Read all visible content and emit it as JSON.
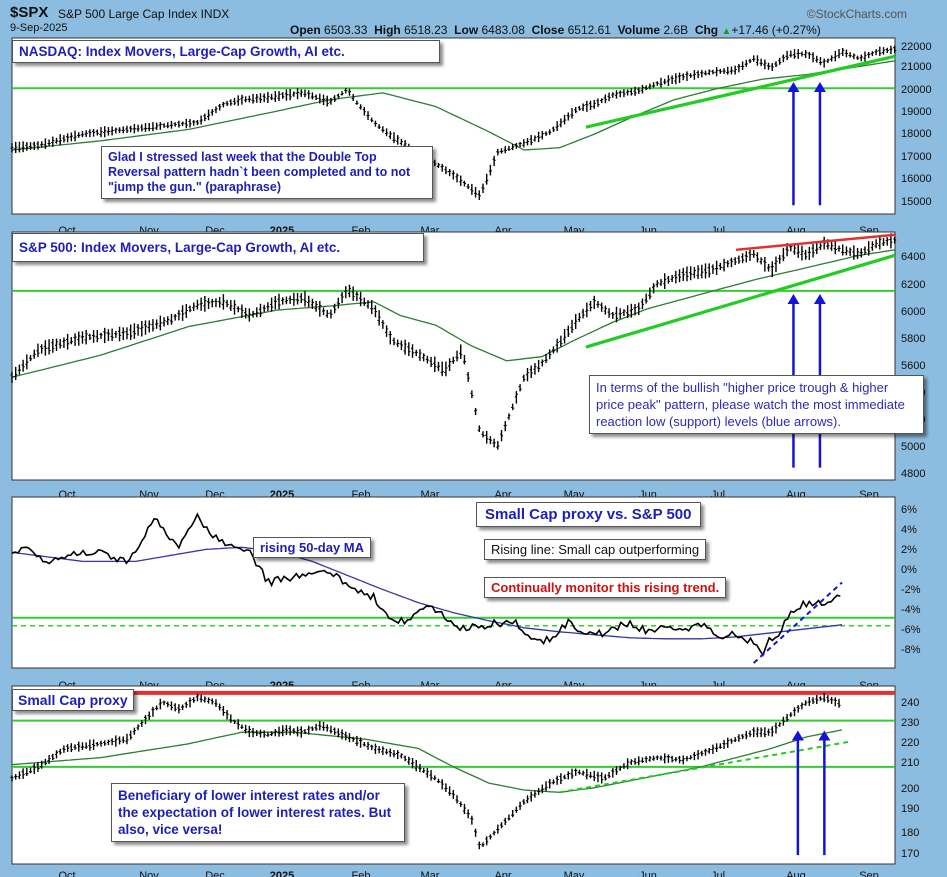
{
  "header": {
    "symbol": "$SPX",
    "index_name": "S&P 500 Large Cap Index",
    "exchange": "INDX",
    "date": "9-Sep-2025",
    "open_label": "Open",
    "open": "6503.33",
    "high_label": "High",
    "high": "6518.23",
    "low_label": "Low",
    "low": "6483.08",
    "close_label": "Close",
    "close": "6512.61",
    "volume_label": "Volume",
    "volume": "2.6B",
    "chg_label": "Chg",
    "chg": "+17.46 (+0.27%)",
    "chg_icon": "up-triangle-icon",
    "brand": "©StockCharts.com"
  },
  "colors": {
    "background": "#8cbcdf",
    "panel": "#ffffff",
    "price": "#000000",
    "moving_average": "#2e7d32",
    "support_line": "#33cc33",
    "resistance_line": "#e03030",
    "trend_green": "#22cc22",
    "arrow": "#1414d8",
    "ratio_ma": "#3636a8"
  },
  "x_axis_ticks": [
    "Oct",
    "Nov",
    "Dec",
    "2025",
    "Feb",
    "Mar",
    "Apr",
    "May",
    "Jun",
    "Jul",
    "Aug",
    "Sep"
  ],
  "annotations": {
    "nasdaq_title": "NASDAQ: Index Movers, Large-Cap Growth, AI etc.",
    "nasdaq_note": "Glad I stressed last week that the Double Top Reversal pattern hadn`t been completed and to not \"jump the gun.\" (paraphrase)",
    "spx_title": "S&P 500: Index Movers, Large-Cap Growth, AI etc.",
    "spx_note": "In terms of the bullish \"higher price trough & higher price peak\" pattern, please watch the most immediate reaction low (support) levels (blue arrows).",
    "ratio_title": "Small Cap proxy vs. S&P 500",
    "ratio_ma_label": "rising 50-day MA",
    "ratio_rising": "Rising line: Small cap outperforming",
    "ratio_monitor": "Continually monitor this rising trend.",
    "small_title": "Small Cap proxy",
    "small_note": "Beneficiary of lower interest rates and/or the expectation of lower interest rates. But also, vice versa!"
  },
  "chart_data": [
    {
      "type": "bar",
      "panel": "nasdaq",
      "ylim": [
        14600,
        22300
      ],
      "ytick_labels": [
        "22000",
        "21000",
        "20000",
        "19000",
        "18000",
        "17000",
        "16000",
        "15000"
      ],
      "anchors": {
        "x": [
          0,
          3,
          8,
          13,
          18,
          21,
          24,
          26,
          29,
          33,
          36,
          38,
          39,
          41,
          43,
          46,
          50,
          53,
          55,
          58,
          61,
          64,
          66,
          68,
          71,
          73,
          76,
          79,
          82,
          84,
          86,
          88,
          90,
          92,
          94,
          96,
          98,
          100
        ],
        "y": [
          17500,
          17600,
          18100,
          18300,
          18500,
          18600,
          19400,
          19600,
          19700,
          19900,
          19500,
          20050,
          19500,
          18600,
          18000,
          17300,
          16300,
          15400,
          17300,
          17700,
          18200,
          19200,
          19400,
          19800,
          20000,
          20300,
          20600,
          20800,
          20900,
          21400,
          21000,
          21600,
          21600,
          21200,
          21700,
          21400,
          21700,
          21800
        ]
      },
      "ma_anchors": {
        "x": [
          0,
          10,
          20,
          30,
          36,
          42,
          48,
          54,
          58,
          62,
          66,
          70,
          75,
          80,
          85,
          90,
          95,
          100
        ],
        "y": [
          17400,
          17800,
          18300,
          19100,
          19600,
          19900,
          19300,
          18200,
          17400,
          17500,
          18100,
          18800,
          19600,
          20100,
          20500,
          20700,
          21000,
          21300
        ]
      },
      "support_y": 20100,
      "trendline": {
        "x": [
          65,
          100
        ],
        "y": [
          18400,
          21500
        ]
      },
      "arrows_x": [
        88.5,
        91.5
      ]
    },
    {
      "type": "bar",
      "panel": "spx",
      "ylim": [
        4750,
        6560
      ],
      "ytick_labels": [
        "6400",
        "6200",
        "6000",
        "5800",
        "5600",
        "5400",
        "5200",
        "5000",
        "4800"
      ],
      "anchors": {
        "x": [
          0,
          3,
          8,
          13,
          18,
          21,
          24,
          27,
          30,
          33,
          36,
          38,
          41,
          43,
          46,
          49,
          51,
          53,
          55,
          58,
          60,
          62,
          64,
          66,
          68,
          71,
          73,
          76,
          79,
          82,
          84,
          86,
          88,
          90,
          92,
          94,
          96,
          98,
          100
        ],
        "y": [
          5500,
          5700,
          5790,
          5820,
          5920,
          6030,
          6050,
          5950,
          6050,
          6080,
          5950,
          6140,
          6000,
          5770,
          5670,
          5550,
          5700,
          5100,
          5000,
          5500,
          5600,
          5750,
          5920,
          6050,
          5950,
          6000,
          6180,
          6250,
          6280,
          6350,
          6400,
          6280,
          6450,
          6390,
          6480,
          6430,
          6400,
          6480,
          6500
        ]
      },
      "ma_anchors": {
        "x": [
          0,
          10,
          20,
          30,
          36,
          41,
          44,
          48,
          52,
          56,
          60,
          64,
          68,
          72,
          76,
          80,
          84,
          88,
          92,
          96,
          100
        ],
        "y": [
          5500,
          5660,
          5870,
          5990,
          6020,
          6050,
          5950,
          5880,
          5730,
          5620,
          5650,
          5780,
          5900,
          6000,
          6070,
          6140,
          6210,
          6270,
          6330,
          6390,
          6430
        ]
      },
      "support_y": 6130,
      "trendline": {
        "x": [
          65,
          100
        ],
        "y": [
          5720,
          6390
        ]
      },
      "resistance": {
        "x": [
          82,
          100
        ],
        "y": [
          6430,
          6540
        ]
      },
      "arrows_x": [
        88.5,
        91.5
      ]
    },
    {
      "type": "line",
      "panel": "ratio",
      "ylim": [
        -10,
        7
      ],
      "ytick_labels": [
        "6%",
        "4%",
        "2%",
        "0%",
        "-2%",
        "-4%",
        "-6%",
        "-8%"
      ],
      "anchors": {
        "x": [
          0,
          2,
          4,
          7,
          10,
          13,
          15,
          16,
          17,
          19,
          21,
          23,
          25,
          27,
          29,
          31,
          33,
          35,
          37,
          39,
          41,
          43,
          45,
          47,
          49,
          51,
          53,
          55,
          57,
          59,
          61,
          63,
          65,
          67,
          70,
          72,
          74,
          76,
          78,
          80,
          82,
          84,
          85,
          86,
          87,
          88,
          89,
          90,
          92,
          94
        ],
        "y": [
          1.5,
          2.0,
          0.5,
          1.5,
          1.5,
          0.5,
          3.0,
          5.0,
          4.0,
          2.0,
          5.0,
          3.0,
          2.0,
          1.5,
          -1.5,
          -1.0,
          -1.0,
          -0.5,
          -1.0,
          -2.5,
          -3.0,
          -5.0,
          -5.5,
          -3.5,
          -5.0,
          -6.0,
          -6.0,
          -5.5,
          -5.5,
          -7.5,
          -7.0,
          -5.5,
          -6.5,
          -6.5,
          -5.5,
          -6.5,
          -6.0,
          -6.5,
          -5.5,
          -7.0,
          -6.5,
          -7.5,
          -8.5,
          -7.0,
          -6.5,
          -4.5,
          -4.0,
          -3.5,
          -3.5,
          -2.5
        ]
      },
      "ma_anchors": {
        "x": [
          0,
          8,
          14,
          18,
          22,
          26,
          30,
          34,
          38,
          42,
          46,
          50,
          54,
          58,
          62,
          66,
          70,
          74,
          78,
          82,
          86,
          90,
          94
        ],
        "y": [
          1.5,
          0.6,
          0.6,
          1.2,
          1.8,
          2.0,
          1.6,
          0.6,
          -0.8,
          -2.2,
          -3.5,
          -4.5,
          -5.3,
          -6.0,
          -6.4,
          -6.7,
          -7.0,
          -7.1,
          -7.1,
          -6.9,
          -6.5,
          -6.1,
          -5.7
        ]
      },
      "support_y": -5.0,
      "support_dashed_y": -5.8,
      "trendline": {
        "x": [
          84,
          94
        ],
        "y": [
          -9.5,
          -1.5
        ]
      }
    },
    {
      "type": "bar",
      "panel": "small_cap",
      "ylim": [
        168,
        245
      ],
      "ytick_labels": [
        "240",
        "230",
        "220",
        "210",
        "200",
        "190",
        "180",
        "170"
      ],
      "anchors": {
        "x": [
          0,
          3,
          6,
          10,
          13,
          15,
          17,
          19,
          21,
          23,
          25,
          27,
          29,
          31,
          33,
          35,
          38,
          41,
          44,
          46,
          48,
          50,
          52,
          53,
          55,
          58,
          61,
          64,
          67,
          70,
          73,
          76,
          79,
          82,
          84,
          86,
          88,
          90,
          92,
          94
        ],
        "y": [
          205,
          210,
          218,
          220,
          222,
          230,
          238,
          235,
          240,
          238,
          230,
          225,
          224,
          226,
          225,
          228,
          223,
          218,
          215,
          210,
          205,
          198,
          188,
          175,
          183,
          195,
          203,
          208,
          205,
          212,
          214,
          213,
          217,
          222,
          225,
          225,
          232,
          238,
          240,
          237
        ]
      },
      "ma_anchors": {
        "x": [
          0,
          10,
          20,
          26,
          32,
          40,
          46,
          50,
          54,
          58,
          62,
          66,
          70,
          74,
          78,
          82,
          86,
          90,
          94
        ],
        "y": [
          211,
          214,
          220,
          225,
          225,
          222,
          218,
          210,
          203,
          200,
          199,
          201,
          204,
          207,
          210,
          214,
          218,
          223,
          226
        ]
      },
      "support_y": 210,
      "resistance_y": 242,
      "mid_support_y": 230,
      "trendline": {
        "x": [
          62,
          95
        ],
        "y": [
          199,
          221
        ]
      },
      "arrows_x": [
        89,
        92
      ]
    }
  ]
}
